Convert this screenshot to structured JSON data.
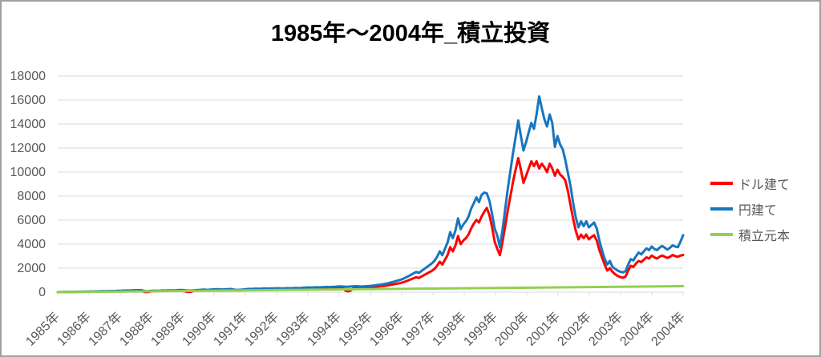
{
  "title": "1985年～2004年_積立投資",
  "colors": {
    "grid": "#d9d9d9",
    "axis_text": "#595959",
    "title_text": "#000000",
    "frame_border": "#a0a0a0",
    "series_red": "#ff0000",
    "series_blue": "#1776be",
    "series_green": "#92d050"
  },
  "legend": {
    "items": [
      {
        "label": "ドル建て",
        "color": "#ff0000"
      },
      {
        "label": "円建て",
        "color": "#1776be"
      },
      {
        "label": "積立元本",
        "color": "#92d050"
      }
    ]
  },
  "chart_data": {
    "type": "line",
    "title": "1985年～2004年_積立投資",
    "grid": true,
    "legend_position": "right",
    "ylim": [
      0,
      18000
    ],
    "y_ticks": [
      0,
      2000,
      4000,
      6000,
      8000,
      10000,
      12000,
      14000,
      16000,
      18000
    ],
    "x_tick_labels": [
      "1985年",
      "1986年",
      "1987年",
      "1988年",
      "1989年",
      "1990年",
      "1991年",
      "1992年",
      "1993年",
      "1994年",
      "1995年",
      "1996年",
      "1997年",
      "1998年",
      "1999年",
      "2000年",
      "2001年",
      "2002年",
      "2003年",
      "2004年",
      "2004年"
    ],
    "series": [
      {
        "name": "ドル建て",
        "color": "#ff0000",
        "values": [
          2,
          5,
          8,
          11,
          14,
          17,
          20,
          23,
          26,
          29,
          32,
          35,
          40,
          46,
          42,
          50,
          56,
          62,
          58,
          66,
          72,
          68,
          76,
          84,
          92,
          100,
          108,
          104,
          112,
          120,
          128,
          124,
          132,
          20,
          5,
          30,
          84,
          92,
          88,
          96,
          104,
          100,
          108,
          116,
          112,
          120,
          128,
          136,
          128,
          40,
          20,
          35,
          112,
          128,
          140,
          152,
          164,
          148,
          160,
          172,
          184,
          192,
          180,
          172,
          184,
          196,
          204,
          172,
          152,
          144,
          160,
          176,
          196,
          212,
          204,
          216,
          224,
          216,
          228,
          236,
          228,
          240,
          236,
          248,
          256,
          248,
          240,
          252,
          260,
          252,
          264,
          272,
          264,
          276,
          288,
          300,
          308,
          300,
          312,
          320,
          312,
          324,
          332,
          340,
          332,
          344,
          356,
          368,
          380,
          364,
          120,
          60,
          150,
          300,
          392,
          380,
          368,
          380,
          392,
          404,
          420,
          440,
          460,
          480,
          500,
          530,
          560,
          600,
          640,
          680,
          720,
          760,
          820,
          900,
          980,
          1070,
          1160,
          1250,
          1180,
          1300,
          1420,
          1540,
          1660,
          1780,
          1950,
          2200,
          2540,
          2300,
          2700,
          3100,
          3750,
          3400,
          3900,
          4680,
          4000,
          4300,
          4500,
          4800,
          5300,
          5700,
          6020,
          5800,
          6300,
          6700,
          7020,
          6400,
          5400,
          4200,
          3600,
          3090,
          4200,
          5500,
          6800,
          8000,
          9200,
          10200,
          11170,
          10200,
          9100,
          9700,
          10300,
          10900,
          10500,
          10900,
          10300,
          10700,
          10400,
          10000,
          10700,
          10300,
          9700,
          10200,
          9800,
          9600,
          9300,
          8400,
          7200,
          6100,
          5100,
          4400,
          4800,
          4500,
          4800,
          4400,
          4600,
          4750,
          4300,
          3500,
          2900,
          2300,
          1800,
          2000,
          1700,
          1500,
          1350,
          1250,
          1200,
          1300,
          1800,
          2200,
          2100,
          2400,
          2600,
          2500,
          2700,
          2900,
          2800,
          3050,
          2900,
          2800,
          2950,
          3050,
          2950,
          2850,
          2950,
          3100,
          3000,
          2950,
          3050,
          3100
        ]
      },
      {
        "name": "円建て",
        "color": "#1776be",
        "values": [
          2,
          6,
          10,
          14,
          18,
          22,
          26,
          30,
          34,
          38,
          42,
          46,
          52,
          60,
          56,
          66,
          74,
          82,
          78,
          88,
          96,
          92,
          102,
          112,
          122,
          132,
          142,
          138,
          148,
          158,
          168,
          164,
          174,
          110,
          85,
          100,
          115,
          125,
          120,
          130,
          140,
          136,
          146,
          156,
          152,
          162,
          172,
          182,
          172,
          152,
          138,
          134,
          152,
          170,
          186,
          200,
          215,
          196,
          210,
          225,
          240,
          250,
          236,
          226,
          240,
          255,
          266,
          226,
          200,
          190,
          210,
          230,
          255,
          275,
          266,
          280,
          290,
          280,
          295,
          305,
          295,
          310,
          305,
          320,
          330,
          320,
          310,
          325,
          335,
          325,
          340,
          350,
          340,
          355,
          370,
          385,
          396,
          386,
          400,
          410,
          400,
          415,
          425,
          435,
          425,
          440,
          455,
          470,
          485,
          466,
          446,
          456,
          470,
          485,
          500,
          485,
          470,
          485,
          500,
          515,
          535,
          560,
          590,
          620,
          650,
          690,
          730,
          790,
          850,
          910,
          970,
          1030,
          1110,
          1220,
          1330,
          1450,
          1570,
          1690,
          1600,
          1760,
          1920,
          2080,
          2240,
          2400,
          2620,
          2950,
          3400,
          3080,
          3620,
          4150,
          5000,
          4500,
          5150,
          6150,
          5250,
          5650,
          5900,
          6300,
          6950,
          7400,
          7890,
          7500,
          8100,
          8300,
          8230,
          7600,
          6500,
          5300,
          4700,
          3750,
          5200,
          6900,
          8600,
          10100,
          11600,
          12900,
          14300,
          13000,
          11800,
          12500,
          13300,
          14100,
          13600,
          14800,
          16300,
          15300,
          14400,
          13800,
          14800,
          14100,
          12100,
          13000,
          12300,
          11900,
          11000,
          9900,
          8800,
          7400,
          6200,
          5400,
          5900,
          5500,
          5900,
          5400,
          5600,
          5800,
          5300,
          4300,
          3500,
          2800,
          2300,
          2600,
          2100,
          1950,
          1800,
          1700,
          1650,
          1750,
          2300,
          2750,
          2650,
          3000,
          3300,
          3150,
          3400,
          3650,
          3500,
          3800,
          3600,
          3500,
          3700,
          3850,
          3700,
          3550,
          3700,
          3900,
          3800,
          3750,
          4200,
          4750
        ]
      },
      {
        "name": "積立元本",
        "color": "#92d050",
        "values": [
          2,
          500
        ]
      }
    ]
  }
}
